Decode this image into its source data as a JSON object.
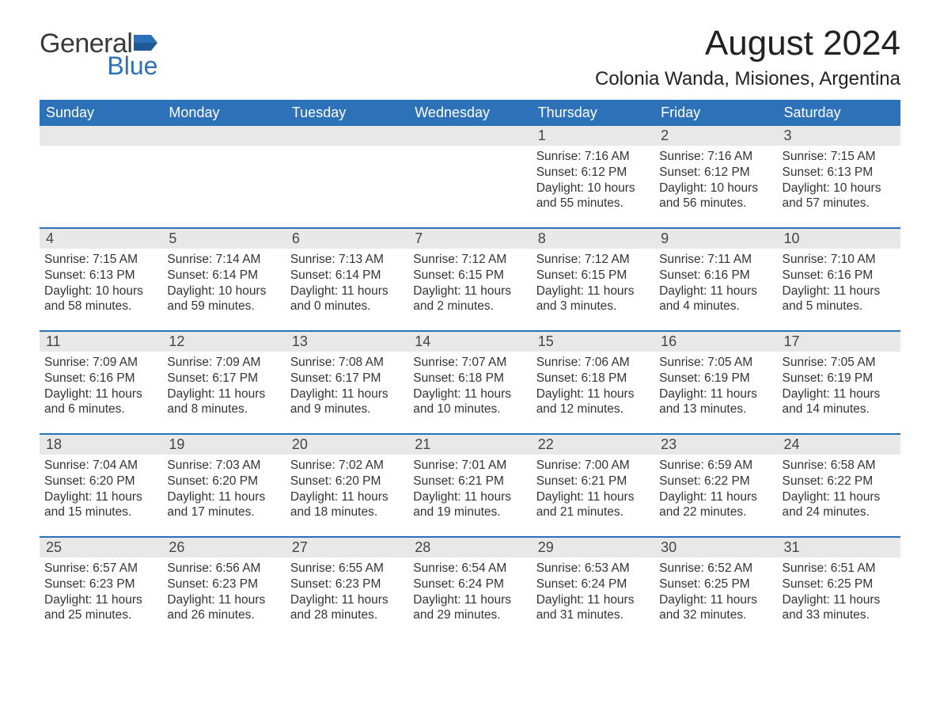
{
  "logo": {
    "word1": "General",
    "word2": "Blue",
    "icon_color": "#2d72b8"
  },
  "title": "August 2024",
  "location": "Colonia Wanda, Misiones, Argentina",
  "header_bg": "#2d72b8",
  "header_fg": "#ffffff",
  "daynum_bg": "#e8e8e8",
  "row_border": "#2d72b8",
  "text_color": "#333333",
  "days_of_week": [
    "Sunday",
    "Monday",
    "Tuesday",
    "Wednesday",
    "Thursday",
    "Friday",
    "Saturday"
  ],
  "weeks": [
    [
      {
        "num": "",
        "sunrise": "",
        "sunset": "",
        "daylight1": "",
        "daylight2": ""
      },
      {
        "num": "",
        "sunrise": "",
        "sunset": "",
        "daylight1": "",
        "daylight2": ""
      },
      {
        "num": "",
        "sunrise": "",
        "sunset": "",
        "daylight1": "",
        "daylight2": ""
      },
      {
        "num": "",
        "sunrise": "",
        "sunset": "",
        "daylight1": "",
        "daylight2": ""
      },
      {
        "num": "1",
        "sunrise": "Sunrise: 7:16 AM",
        "sunset": "Sunset: 6:12 PM",
        "daylight1": "Daylight: 10 hours",
        "daylight2": "and 55 minutes."
      },
      {
        "num": "2",
        "sunrise": "Sunrise: 7:16 AM",
        "sunset": "Sunset: 6:12 PM",
        "daylight1": "Daylight: 10 hours",
        "daylight2": "and 56 minutes."
      },
      {
        "num": "3",
        "sunrise": "Sunrise: 7:15 AM",
        "sunset": "Sunset: 6:13 PM",
        "daylight1": "Daylight: 10 hours",
        "daylight2": "and 57 minutes."
      }
    ],
    [
      {
        "num": "4",
        "sunrise": "Sunrise: 7:15 AM",
        "sunset": "Sunset: 6:13 PM",
        "daylight1": "Daylight: 10 hours",
        "daylight2": "and 58 minutes."
      },
      {
        "num": "5",
        "sunrise": "Sunrise: 7:14 AM",
        "sunset": "Sunset: 6:14 PM",
        "daylight1": "Daylight: 10 hours",
        "daylight2": "and 59 minutes."
      },
      {
        "num": "6",
        "sunrise": "Sunrise: 7:13 AM",
        "sunset": "Sunset: 6:14 PM",
        "daylight1": "Daylight: 11 hours",
        "daylight2": "and 0 minutes."
      },
      {
        "num": "7",
        "sunrise": "Sunrise: 7:12 AM",
        "sunset": "Sunset: 6:15 PM",
        "daylight1": "Daylight: 11 hours",
        "daylight2": "and 2 minutes."
      },
      {
        "num": "8",
        "sunrise": "Sunrise: 7:12 AM",
        "sunset": "Sunset: 6:15 PM",
        "daylight1": "Daylight: 11 hours",
        "daylight2": "and 3 minutes."
      },
      {
        "num": "9",
        "sunrise": "Sunrise: 7:11 AM",
        "sunset": "Sunset: 6:16 PM",
        "daylight1": "Daylight: 11 hours",
        "daylight2": "and 4 minutes."
      },
      {
        "num": "10",
        "sunrise": "Sunrise: 7:10 AM",
        "sunset": "Sunset: 6:16 PM",
        "daylight1": "Daylight: 11 hours",
        "daylight2": "and 5 minutes."
      }
    ],
    [
      {
        "num": "11",
        "sunrise": "Sunrise: 7:09 AM",
        "sunset": "Sunset: 6:16 PM",
        "daylight1": "Daylight: 11 hours",
        "daylight2": "and 6 minutes."
      },
      {
        "num": "12",
        "sunrise": "Sunrise: 7:09 AM",
        "sunset": "Sunset: 6:17 PM",
        "daylight1": "Daylight: 11 hours",
        "daylight2": "and 8 minutes."
      },
      {
        "num": "13",
        "sunrise": "Sunrise: 7:08 AM",
        "sunset": "Sunset: 6:17 PM",
        "daylight1": "Daylight: 11 hours",
        "daylight2": "and 9 minutes."
      },
      {
        "num": "14",
        "sunrise": "Sunrise: 7:07 AM",
        "sunset": "Sunset: 6:18 PM",
        "daylight1": "Daylight: 11 hours",
        "daylight2": "and 10 minutes."
      },
      {
        "num": "15",
        "sunrise": "Sunrise: 7:06 AM",
        "sunset": "Sunset: 6:18 PM",
        "daylight1": "Daylight: 11 hours",
        "daylight2": "and 12 minutes."
      },
      {
        "num": "16",
        "sunrise": "Sunrise: 7:05 AM",
        "sunset": "Sunset: 6:19 PM",
        "daylight1": "Daylight: 11 hours",
        "daylight2": "and 13 minutes."
      },
      {
        "num": "17",
        "sunrise": "Sunrise: 7:05 AM",
        "sunset": "Sunset: 6:19 PM",
        "daylight1": "Daylight: 11 hours",
        "daylight2": "and 14 minutes."
      }
    ],
    [
      {
        "num": "18",
        "sunrise": "Sunrise: 7:04 AM",
        "sunset": "Sunset: 6:20 PM",
        "daylight1": "Daylight: 11 hours",
        "daylight2": "and 15 minutes."
      },
      {
        "num": "19",
        "sunrise": "Sunrise: 7:03 AM",
        "sunset": "Sunset: 6:20 PM",
        "daylight1": "Daylight: 11 hours",
        "daylight2": "and 17 minutes."
      },
      {
        "num": "20",
        "sunrise": "Sunrise: 7:02 AM",
        "sunset": "Sunset: 6:20 PM",
        "daylight1": "Daylight: 11 hours",
        "daylight2": "and 18 minutes."
      },
      {
        "num": "21",
        "sunrise": "Sunrise: 7:01 AM",
        "sunset": "Sunset: 6:21 PM",
        "daylight1": "Daylight: 11 hours",
        "daylight2": "and 19 minutes."
      },
      {
        "num": "22",
        "sunrise": "Sunrise: 7:00 AM",
        "sunset": "Sunset: 6:21 PM",
        "daylight1": "Daylight: 11 hours",
        "daylight2": "and 21 minutes."
      },
      {
        "num": "23",
        "sunrise": "Sunrise: 6:59 AM",
        "sunset": "Sunset: 6:22 PM",
        "daylight1": "Daylight: 11 hours",
        "daylight2": "and 22 minutes."
      },
      {
        "num": "24",
        "sunrise": "Sunrise: 6:58 AM",
        "sunset": "Sunset: 6:22 PM",
        "daylight1": "Daylight: 11 hours",
        "daylight2": "and 24 minutes."
      }
    ],
    [
      {
        "num": "25",
        "sunrise": "Sunrise: 6:57 AM",
        "sunset": "Sunset: 6:23 PM",
        "daylight1": "Daylight: 11 hours",
        "daylight2": "and 25 minutes."
      },
      {
        "num": "26",
        "sunrise": "Sunrise: 6:56 AM",
        "sunset": "Sunset: 6:23 PM",
        "daylight1": "Daylight: 11 hours",
        "daylight2": "and 26 minutes."
      },
      {
        "num": "27",
        "sunrise": "Sunrise: 6:55 AM",
        "sunset": "Sunset: 6:23 PM",
        "daylight1": "Daylight: 11 hours",
        "daylight2": "and 28 minutes."
      },
      {
        "num": "28",
        "sunrise": "Sunrise: 6:54 AM",
        "sunset": "Sunset: 6:24 PM",
        "daylight1": "Daylight: 11 hours",
        "daylight2": "and 29 minutes."
      },
      {
        "num": "29",
        "sunrise": "Sunrise: 6:53 AM",
        "sunset": "Sunset: 6:24 PM",
        "daylight1": "Daylight: 11 hours",
        "daylight2": "and 31 minutes."
      },
      {
        "num": "30",
        "sunrise": "Sunrise: 6:52 AM",
        "sunset": "Sunset: 6:25 PM",
        "daylight1": "Daylight: 11 hours",
        "daylight2": "and 32 minutes."
      },
      {
        "num": "31",
        "sunrise": "Sunrise: 6:51 AM",
        "sunset": "Sunset: 6:25 PM",
        "daylight1": "Daylight: 11 hours",
        "daylight2": "and 33 minutes."
      }
    ]
  ]
}
